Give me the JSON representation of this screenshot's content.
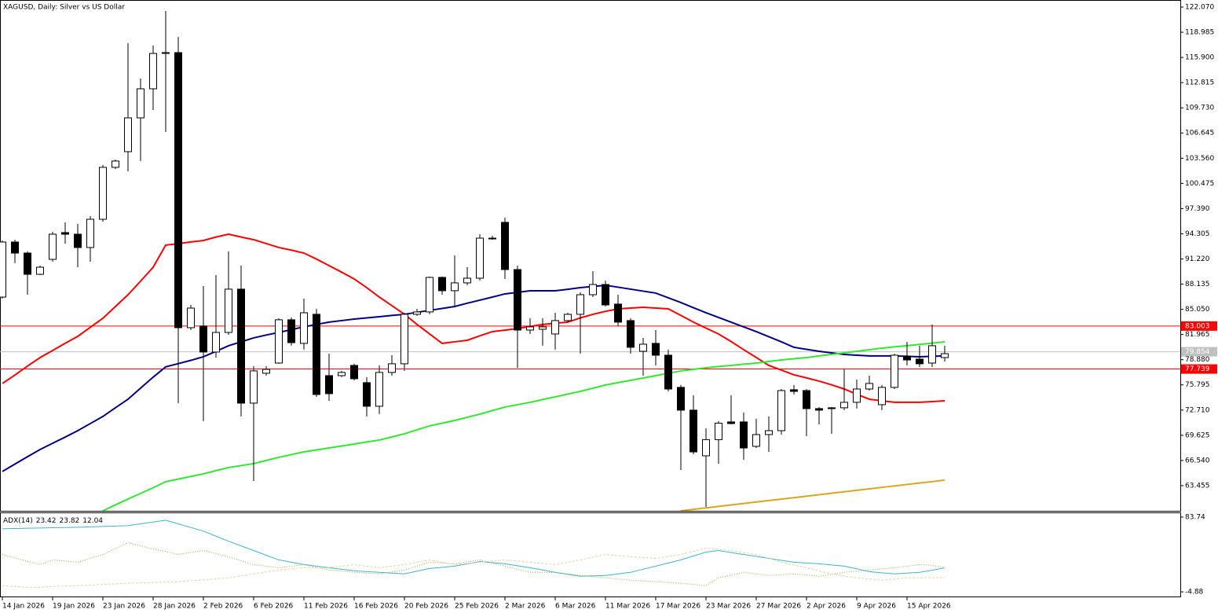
{
  "chart_data": [
    {
      "type": "candlestick",
      "title": "XAGUSD, Daily:  Silver vs US Dollar",
      "categories": [
        "14 Jan 2026",
        null,
        null,
        null,
        "19 Jan 2026",
        null,
        null,
        null,
        "23 Jan 2026",
        null,
        null,
        null,
        "28 Jan 2026",
        null,
        null,
        null,
        "2 Feb 2026",
        null,
        null,
        null,
        "6 Feb 2026",
        null,
        null,
        null,
        "11 Feb 2026",
        null,
        null,
        null,
        "16 Feb 2026",
        null,
        null,
        null,
        "20 Feb 2026",
        null,
        null,
        null,
        "25 Feb 2026",
        null,
        null,
        null,
        "2 Mar 2026",
        null,
        null,
        null,
        "6 Mar 2026",
        null,
        null,
        null,
        "11 Mar 2026",
        null,
        null,
        null,
        "17 Mar 2026",
        null,
        null,
        null,
        "23 Mar 2026",
        null,
        null,
        null,
        "27 Mar 2026",
        null,
        null,
        null,
        "2 Apr 2026",
        null,
        null,
        null,
        "9 Apr 2026",
        null,
        null,
        null,
        "15 Apr 2026",
        null,
        null,
        null
      ],
      "open": [
        86.55,
        93.29,
        91.94,
        89.34,
        91.17,
        94.45,
        94.25,
        92.62,
        96.08,
        102.44,
        104.36,
        108.5,
        112.06,
        116.4,
        116.49,
        82.8,
        83.0,
        79.82,
        82.22,
        87.52,
        73.56,
        77.22,
        78.47,
        83.77,
        80.88,
        84.44,
        76.93,
        76.93,
        78.18,
        76.07,
        73.18,
        77.32,
        78.38,
        84.44,
        84.73,
        88.96,
        87.33,
        88.29,
        88.86,
        93.77,
        95.7,
        89.92,
        82.51,
        82.61,
        82.03,
        83.67,
        84.44,
        86.84,
        88.09,
        85.69,
        83.67,
        79.91,
        80.88,
        79.43,
        75.49,
        72.7,
        67.11,
        69.09,
        71.26,
        71.26,
        68.27,
        69.71,
        70.19,
        75.2,
        75.1,
        72.89,
        72.99,
        72.99,
        73.66,
        75.29,
        73.37,
        75.49,
        79.33,
        78.95,
        78.47,
        79.14
      ],
      "high": [
        93.49,
        93.58,
        92.14,
        90.4,
        94.54,
        95.7,
        95.51,
        96.47,
        102.72,
        103.4,
        117.64,
        113.31,
        117.35,
        121.59,
        118.41,
        85.59,
        87.9,
        89.25,
        92.14,
        90.4,
        78.08,
        78.08,
        83.96,
        84.05,
        86.36,
        85.11,
        79.62,
        77.51,
        78.38,
        76.74,
        78.18,
        79.43,
        84.63,
        85.11,
        89.06,
        89.06,
        91.65,
        90.21,
        94.25,
        94.06,
        96.28,
        90.4,
        83.96,
        83.96,
        84.63,
        84.63,
        87.13,
        89.73,
        88.57,
        86.84,
        83.96,
        81.55,
        82.51,
        80.11,
        75.78,
        74.52,
        70.48,
        71.35,
        74.52,
        72.41,
        71.64,
        71.93,
        75.29,
        75.78,
        75.29,
        73.08,
        73.08,
        77.7,
        76.45,
        76.93,
        75.78,
        79.62,
        81.07,
        80.59,
        83.19,
        80.59
      ],
      "low": [
        86.36,
        90.7,
        86.84,
        89.25,
        90.88,
        93.1,
        90.21,
        90.88,
        95.79,
        102.24,
        101.95,
        103.21,
        109.46,
        106.77,
        73.56,
        82.51,
        71.35,
        79.14,
        81.93,
        71.93,
        64.03,
        76.93,
        78.38,
        80.59,
        80.11,
        74.33,
        73.85,
        76.74,
        76.35,
        71.93,
        72.22,
        76.93,
        77.51,
        84.25,
        84.44,
        86.84,
        85.4,
        88.0,
        88.57,
        93.58,
        88.77,
        77.89,
        82.03,
        80.59,
        80.11,
        83.48,
        79.62,
        86.55,
        85.4,
        83.0,
        79.62,
        76.93,
        78.18,
        75.0,
        65.38,
        67.3,
        60.85,
        66.15,
        70.96,
        66.63,
        68.07,
        67.59,
        69.71,
        74.62,
        69.52,
        70.96,
        69.8,
        72.7,
        72.89,
        75.1,
        72.7,
        75.29,
        78.18,
        77.99,
        77.99,
        78.66
      ],
      "close": [
        93.29,
        91.94,
        89.34,
        90.21,
        94.25,
        94.25,
        92.62,
        96.08,
        102.44,
        103.21,
        108.5,
        112.06,
        116.39,
        116.49,
        82.8,
        85.2,
        79.82,
        82.22,
        87.52,
        73.56,
        77.51,
        77.7,
        83.77,
        80.97,
        84.63,
        74.62,
        74.72,
        77.32,
        76.55,
        73.18,
        77.32,
        78.38,
        84.44,
        84.73,
        88.96,
        87.33,
        88.29,
        88.86,
        93.77,
        93.68,
        89.92,
        82.51,
        82.9,
        82.9,
        83.67,
        84.44,
        86.84,
        88.09,
        85.59,
        83.48,
        80.4,
        80.78,
        79.43,
        75.29,
        72.7,
        67.59,
        69.09,
        71.11,
        71.06,
        68.07,
        69.71,
        70.19,
        75.1,
        75.0,
        72.89,
        72.7,
        72.89,
        73.66,
        75.29,
        75.97,
        75.49,
        79.43,
        78.85,
        78.38,
        80.59,
        79.62
      ],
      "series": [
        {
          "color": "#ff0000",
          "style": "solid",
          "values": [
            75.97,
            77.0,
            78.1,
            79.14,
            80.0,
            80.9,
            81.74,
            82.85,
            83.96,
            85.4,
            86.84,
            88.5,
            90.21,
            92.91,
            93.1,
            93.3,
            93.48,
            93.9,
            94.25,
            93.9,
            93.58,
            93.1,
            92.62,
            92.3,
            91.94,
            91.2,
            90.4,
            89.6,
            88.77,
            87.7,
            86.55,
            85.5,
            84.44,
            83.2,
            82.03,
            80.88,
            81.07,
            81.26,
            81.8,
            82.32,
            82.5,
            82.7,
            82.95,
            83.19,
            83.35,
            83.48,
            84.0,
            84.44,
            84.8,
            85.11,
            85.2,
            85.3,
            85.2,
            85.11,
            84.3,
            83.48,
            82.75,
            82.03,
            81.1,
            80.11,
            79.15,
            78.18,
            77.6,
            77.03,
            76.65,
            76.26,
            75.8,
            75.29,
            74.65,
            74.04,
            73.85,
            73.66,
            73.66,
            73.66,
            73.75,
            73.85
          ]
        },
        {
          "color": "#000080",
          "style": "solid",
          "values": [
            65.19,
            66.1,
            67.0,
            67.88,
            68.65,
            69.4,
            70.19,
            71.06,
            71.93,
            73.0,
            74.04,
            75.4,
            76.74,
            78.0,
            78.4,
            78.8,
            79.24,
            79.9,
            80.59,
            81.07,
            81.55,
            81.9,
            82.22,
            82.56,
            82.9,
            83.2,
            83.48,
            83.67,
            83.86,
            84.0,
            84.15,
            84.3,
            84.44,
            84.68,
            84.92,
            85.16,
            85.4,
            85.8,
            86.17,
            86.55,
            86.94,
            87.13,
            87.32,
            87.32,
            87.32,
            87.5,
            87.71,
            87.85,
            88.0,
            87.76,
            87.52,
            87.28,
            87.04,
            86.46,
            85.88,
            85.25,
            84.63,
            84.05,
            83.48,
            82.9,
            82.32,
            81.7,
            81.07,
            80.4,
            80.15,
            79.91,
            79.72,
            79.53,
            79.43,
            79.34,
            79.34,
            79.34,
            79.29,
            79.24,
            79.29,
            79.34
          ]
        },
        {
          "color": "#32e632",
          "style": "solid",
          "values": [
            null,
            null,
            null,
            null,
            null,
            null,
            null,
            null,
            60.37,
            61.1,
            61.82,
            62.5,
            63.2,
            63.94,
            64.26,
            64.58,
            64.9,
            65.29,
            65.67,
            65.91,
            66.15,
            66.54,
            66.92,
            67.26,
            67.59,
            67.83,
            68.07,
            68.31,
            68.55,
            68.8,
            69.04,
            69.42,
            69.81,
            70.29,
            70.77,
            71.1,
            71.44,
            71.83,
            72.21,
            72.65,
            73.08,
            73.37,
            73.66,
            74.0,
            74.33,
            74.67,
            75.0,
            75.39,
            75.78,
            76.07,
            76.35,
            76.64,
            76.93,
            77.22,
            77.51,
            77.7,
            77.89,
            78.04,
            78.18,
            78.33,
            78.47,
            78.66,
            78.85,
            79.0,
            79.14,
            79.34,
            79.53,
            79.72,
            79.91,
            80.1,
            80.3,
            80.45,
            80.59,
            80.75,
            80.91,
            81.07
          ]
        },
        {
          "color": "#daa520",
          "style": "solid",
          "values": [
            null,
            null,
            null,
            null,
            null,
            null,
            null,
            null,
            null,
            null,
            null,
            null,
            null,
            null,
            null,
            null,
            null,
            null,
            null,
            null,
            null,
            null,
            null,
            null,
            null,
            null,
            null,
            null,
            null,
            null,
            null,
            null,
            null,
            null,
            null,
            null,
            null,
            null,
            null,
            null,
            null,
            null,
            null,
            null,
            null,
            null,
            null,
            null,
            null,
            null,
            null,
            null,
            null,
            null,
            60.37,
            60.55,
            60.73,
            60.91,
            61.09,
            61.27,
            61.45,
            61.63,
            61.8,
            61.98,
            62.16,
            62.34,
            62.52,
            62.7,
            62.88,
            63.06,
            63.24,
            63.42,
            63.6,
            63.77,
            63.95,
            64.13
          ]
        }
      ],
      "price_lines": [
        {
          "value": 83.003,
          "color": "#ff0000"
        },
        {
          "value": 77.739,
          "color": "#ff0000"
        },
        {
          "value": 79.854,
          "color": "#c0c0c0"
        }
      ],
      "ylim": [
        60.37,
        122.55
      ],
      "yticks": [
        {
          "value": 122.07,
          "label": "122.070"
        },
        118.985,
        {
          "value": 115.9,
          "label": "115.900"
        },
        112.815,
        {
          "value": 109.73,
          "label": "109.730"
        },
        106.645,
        {
          "value": 103.56,
          "label": "103.560"
        },
        100.475,
        {
          "value": 97.39,
          "label": "97.390"
        },
        94.305,
        {
          "value": 91.22,
          "label": "91.220"
        },
        88.135,
        {
          "value": 85.05,
          "label": "85.050"
        },
        81.965,
        {
          "value": 78.88,
          "label": "78.880"
        },
        75.795,
        {
          "value": 72.71,
          "label": "72.710"
        },
        69.625,
        {
          "value": 66.54,
          "label": "66.540"
        },
        63.455
      ]
    },
    {
      "type": "line",
      "title": "ADX(14)",
      "legend_values": [
        23.42,
        23.82,
        12.04
      ],
      "series": [
        {
          "color": "#3fb4c8",
          "style": "solid",
          "values": [
            69.9,
            70.2,
            70.5,
            70.8,
            71.1,
            71.4,
            71.7,
            72.2,
            72.6,
            73.1,
            73.6,
            75.8,
            77.9,
            80.1,
            75.7,
            71.4,
            67.1,
            61.1,
            55.1,
            49.6,
            44.1,
            38.5,
            33.0,
            30.2,
            27.4,
            25.6,
            23.7,
            21.9,
            20.1,
            19.1,
            18.2,
            17.3,
            16.4,
            19.6,
            22.8,
            24.2,
            25.6,
            28.4,
            31.1,
            29.7,
            28.4,
            26.0,
            23.7,
            21.0,
            18.2,
            15.9,
            13.6,
            14.1,
            14.5,
            16.4,
            18.2,
            21.9,
            25.6,
            29.3,
            33.0,
            37.6,
            42.2,
            44.1,
            41.7,
            39.4,
            37.1,
            34.8,
            32.5,
            30.2,
            29.3,
            28.4,
            27.0,
            25.6,
            22.4,
            19.1,
            17.7,
            16.4,
            17.3,
            18.2,
            20.8,
            23.42
          ]
        },
        {
          "color": "#9aa83c",
          "style": "dotted",
          "values": [
            39.4,
            35.4,
            31.4,
            27.4,
            33.0,
            31.6,
            30.2,
            34.8,
            39.4,
            46.4,
            53.3,
            49.6,
            45.9,
            42.9,
            39.4,
            41.8,
            44.1,
            40.4,
            36.7,
            32.1,
            27.4,
            25.6,
            23.7,
            25.6,
            27.4,
            24.2,
            21.0,
            19.6,
            18.2,
            17.3,
            16.4,
            18.7,
            21.0,
            25.6,
            30.2,
            29.3,
            28.4,
            30.7,
            33.0,
            29.3,
            25.6,
            21.9,
            18.2,
            18.2,
            18.2,
            16.4,
            14.5,
            13.1,
            11.7,
            10.4,
            9.0,
            8.1,
            7.1,
            6.2,
            5.3,
            3.9,
            2.5,
            11.7,
            15.0,
            18.2,
            16.4,
            14.5,
            15.5,
            16.4,
            15.0,
            13.6,
            15.9,
            18.2,
            19.6,
            21.0,
            22.4,
            23.7,
            25.6,
            27.4,
            26.5,
            23.82
          ]
        },
        {
          "color": "#e8d0a8",
          "style": "dashed",
          "values": [
            2.5,
            1.5,
            0.5,
            0.5,
            1.5,
            2.0,
            2.5,
            3.2,
            3.9,
            4.6,
            5.3,
            5.8,
            6.2,
            6.7,
            7.1,
            8.3,
            9.4,
            10.5,
            11.7,
            14.0,
            16.4,
            18.7,
            21.0,
            22.4,
            23.7,
            23.7,
            23.7,
            25.6,
            27.4,
            25.6,
            23.7,
            25.6,
            27.4,
            30.2,
            33.0,
            30.2,
            27.4,
            28.8,
            30.2,
            31.6,
            33.0,
            31.6,
            30.2,
            28.8,
            27.4,
            30.2,
            33.0,
            36.2,
            39.4,
            38.0,
            36.7,
            35.8,
            34.8,
            37.1,
            39.4,
            43.1,
            46.8,
            45.5,
            44.1,
            41.7,
            39.4,
            34.8,
            30.2,
            27.0,
            23.7,
            20.0,
            16.4,
            14.0,
            11.7,
            10.4,
            9.0,
            10.3,
            11.7,
            11.7,
            11.9,
            12.04
          ]
        }
      ],
      "ylim": [
        -11.34,
        88.36
      ],
      "yticks": [
        83.74,
        -4.88
      ]
    }
  ]
}
